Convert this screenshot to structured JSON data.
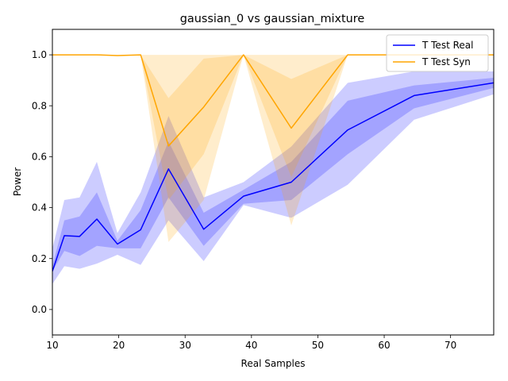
{
  "chart_data": {
    "type": "line",
    "title": "gaussian_0 vs gaussian_mixture",
    "xlabel": "Real Samples",
    "ylabel": "Power",
    "xlim": [
      10,
      76.5
    ],
    "ylim": [
      -0.1,
      1.1
    ],
    "xticks": [
      10,
      20,
      30,
      40,
      50,
      60,
      70
    ],
    "yticks": [
      0.0,
      0.2,
      0.4,
      0.6,
      0.8,
      1.0
    ],
    "grid": false,
    "legend_position": "top-right",
    "x": [
      10,
      11.8,
      14.1,
      16.7,
      19.8,
      23.3,
      27.5,
      32.8,
      38.8,
      46.0,
      54.5,
      64.5,
      76.5
    ],
    "series": [
      {
        "name": "T Test Real",
        "color": "#0000ff",
        "values": [
          0.15,
          0.29,
          0.287,
          0.355,
          0.257,
          0.313,
          0.552,
          0.315,
          0.445,
          0.5,
          0.705,
          0.84,
          0.89
        ],
        "band_inner": {
          "lower": [
            0.15,
            0.23,
            0.21,
            0.25,
            0.24,
            0.24,
            0.44,
            0.25,
            0.415,
            0.43,
            0.61,
            0.79,
            0.87
          ],
          "upper": [
            0.17,
            0.35,
            0.365,
            0.46,
            0.27,
            0.39,
            0.66,
            0.38,
            0.47,
            0.58,
            0.82,
            0.88,
            0.91
          ]
        },
        "band_outer": {
          "lower": [
            0.1,
            0.17,
            0.16,
            0.18,
            0.215,
            0.175,
            0.35,
            0.19,
            0.41,
            0.36,
            0.49,
            0.745,
            0.845
          ],
          "upper": [
            0.24,
            0.43,
            0.44,
            0.58,
            0.3,
            0.46,
            0.76,
            0.44,
            0.5,
            0.64,
            0.89,
            0.935,
            0.935
          ]
        }
      },
      {
        "name": "T Test Syn",
        "color": "#ffa500",
        "values": [
          1.0,
          1.0,
          1.0,
          1.0,
          0.997,
          1.0,
          0.642,
          0.795,
          1.0,
          0.712,
          1.0,
          1.0,
          1.0
        ],
        "band_inner": {
          "lower": [
            1.0,
            1.0,
            1.0,
            1.0,
            0.997,
            1.0,
            0.43,
            0.61,
            1.0,
            0.52,
            1.0,
            1.0,
            1.0
          ],
          "upper": [
            1.0,
            1.0,
            1.0,
            1.0,
            0.997,
            1.0,
            0.83,
            0.985,
            1.0,
            0.905,
            1.0,
            1.0,
            1.0
          ]
        },
        "band_outer": {
          "lower": [
            1.0,
            1.0,
            1.0,
            1.0,
            0.997,
            1.0,
            0.265,
            0.43,
            1.0,
            0.33,
            1.0,
            1.0,
            1.0
          ],
          "upper": [
            1.0,
            1.0,
            1.0,
            1.0,
            0.997,
            1.0,
            1.0,
            1.0,
            1.0,
            1.0,
            1.0,
            1.0,
            1.0
          ]
        }
      }
    ]
  }
}
